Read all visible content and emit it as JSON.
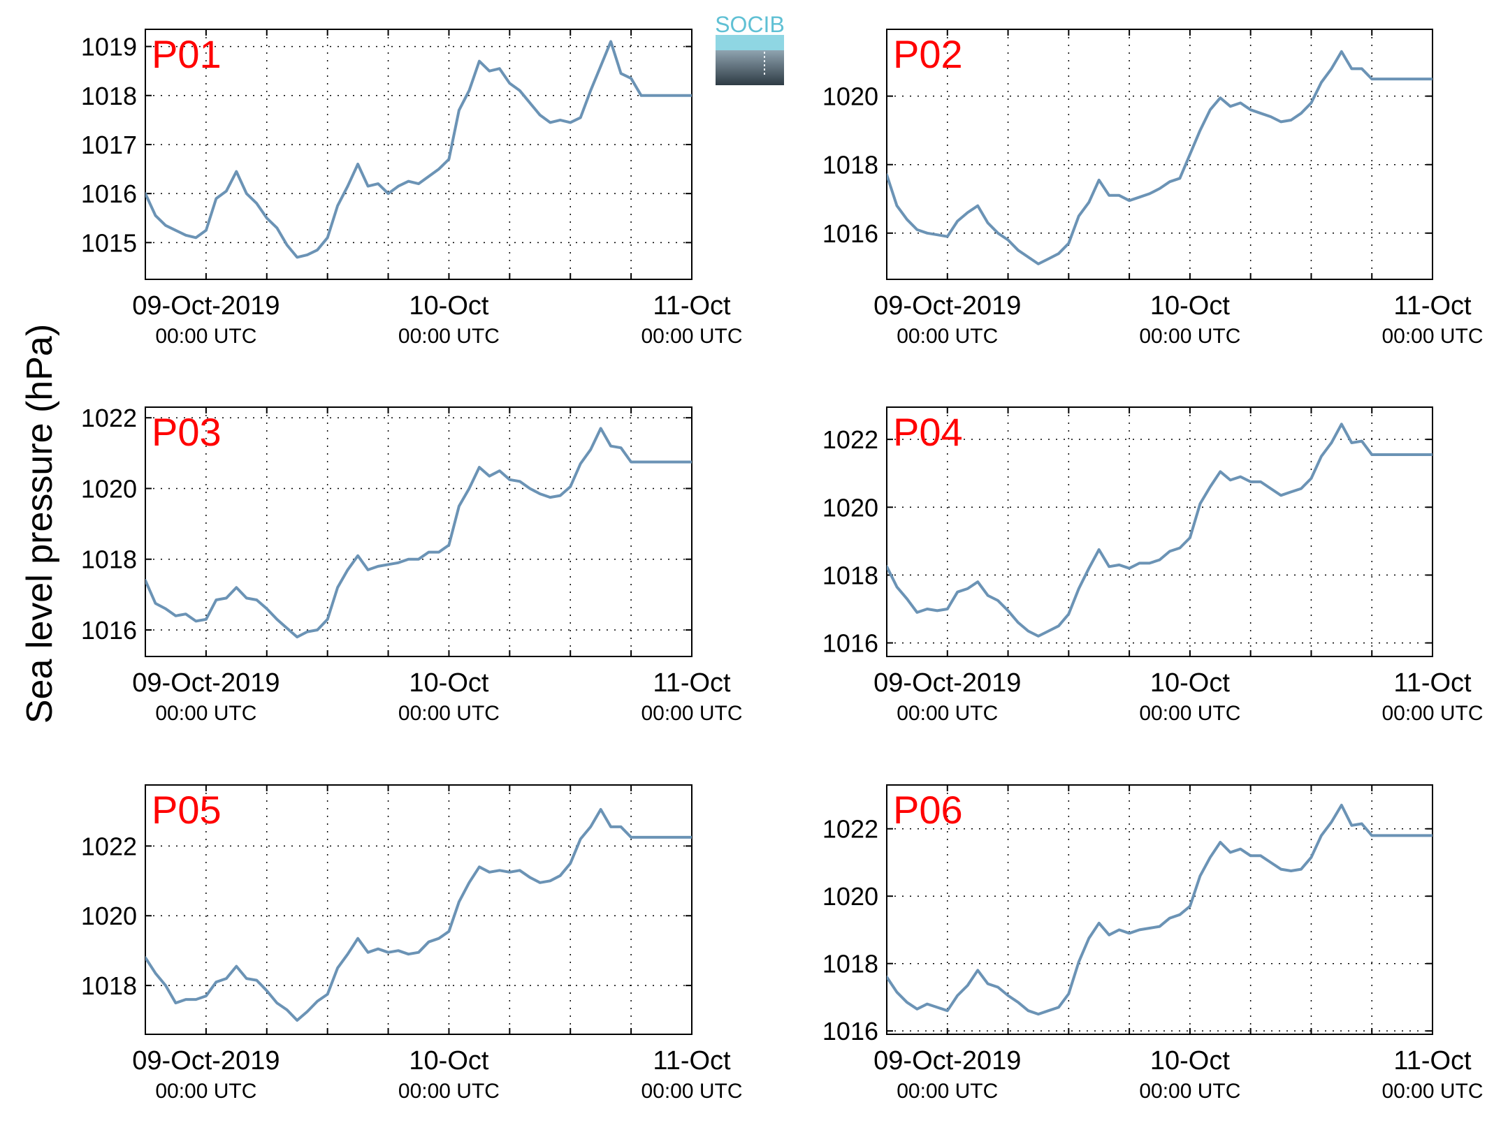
{
  "figure": {
    "ylabel": "Sea level pressure (hPa)",
    "logo_text": "SOCIB"
  },
  "colors": {
    "series": "#6b93b5",
    "panel_label": "#ff0000",
    "logo_top": "#5fc0d4",
    "logo_bottom": "#2e3b44"
  },
  "icons": {
    "logo": "socib-logo"
  },
  "x_ticks": [
    {
      "t": 0,
      "line1": "09-Oct-2019",
      "line2": "00:00 UTC"
    },
    {
      "t": 24,
      "line1": "10-Oct",
      "line2": "00:00 UTC"
    },
    {
      "t": 48,
      "line1": "11-Oct",
      "line2": "00:00 UTC"
    }
  ],
  "chart_data": [
    {
      "type": "line",
      "label": "P01",
      "xlim": [
        -6,
        48
      ],
      "ylim": [
        1014.25,
        1019.35
      ],
      "yticks": [
        1015,
        1016,
        1017,
        1018,
        1019
      ],
      "grid": true,
      "x": [
        -6,
        -5,
        -4,
        -3,
        -2,
        -1,
        0,
        1,
        2,
        3,
        4,
        5,
        6,
        7,
        8,
        9,
        10,
        11,
        12,
        13,
        14,
        15,
        16,
        17,
        18,
        19,
        20,
        21,
        22,
        23,
        24,
        25,
        26,
        27,
        28,
        29,
        30,
        31,
        32,
        33,
        34,
        35,
        36,
        37,
        38,
        39,
        40,
        41,
        42,
        43,
        44,
        45,
        46,
        47,
        48
      ],
      "y": [
        1016.0,
        1015.55,
        1015.35,
        1015.25,
        1015.15,
        1015.1,
        1015.25,
        1015.9,
        1016.05,
        1016.45,
        1016.0,
        1015.8,
        1015.5,
        1015.3,
        1014.95,
        1014.7,
        1014.75,
        1014.85,
        1015.1,
        1015.75,
        1016.15,
        1016.6,
        1016.15,
        1016.2,
        1016.0,
        1016.15,
        1016.25,
        1016.2,
        1016.35,
        1016.5,
        1016.7,
        1017.7,
        1018.1,
        1018.7,
        1018.5,
        1018.55,
        1018.25,
        1018.1,
        1017.85,
        1017.6,
        1017.45,
        1017.5,
        1017.45,
        1017.55,
        1018.1,
        1018.6,
        1019.1,
        1018.45,
        1018.35,
        1018.0,
        1018.0,
        1018.0,
        1018.0,
        1018.0,
        1018.0
      ]
    },
    {
      "type": "line",
      "label": "P02",
      "xlim": [
        -6,
        48
      ],
      "ylim": [
        1014.65,
        1021.95
      ],
      "yticks": [
        1016,
        1018,
        1020
      ],
      "grid": true,
      "x": [
        -6,
        -5,
        -4,
        -3,
        -2,
        -1,
        0,
        1,
        2,
        3,
        4,
        5,
        6,
        7,
        8,
        9,
        10,
        11,
        12,
        13,
        14,
        15,
        16,
        17,
        18,
        19,
        20,
        21,
        22,
        23,
        24,
        25,
        26,
        27,
        28,
        29,
        30,
        31,
        32,
        33,
        34,
        35,
        36,
        37,
        38,
        39,
        40,
        41,
        42,
        43,
        44,
        45,
        46,
        47,
        48
      ],
      "y": [
        1017.7,
        1016.8,
        1016.4,
        1016.1,
        1016.0,
        1015.95,
        1015.9,
        1016.35,
        1016.6,
        1016.8,
        1016.3,
        1016.0,
        1015.8,
        1015.5,
        1015.3,
        1015.1,
        1015.25,
        1015.4,
        1015.7,
        1016.5,
        1016.9,
        1017.55,
        1017.1,
        1017.1,
        1016.95,
        1017.05,
        1017.15,
        1017.3,
        1017.5,
        1017.6,
        1018.3,
        1019.0,
        1019.6,
        1019.95,
        1019.7,
        1019.8,
        1019.6,
        1019.5,
        1019.4,
        1019.25,
        1019.3,
        1019.5,
        1019.8,
        1020.4,
        1020.8,
        1021.3,
        1020.8,
        1020.8,
        1020.5,
        1020.5,
        1020.5,
        1020.5,
        1020.5,
        1020.5,
        1020.5
      ]
    },
    {
      "type": "line",
      "label": "P03",
      "xlim": [
        -6,
        48
      ],
      "ylim": [
        1015.25,
        1022.3
      ],
      "yticks": [
        1016,
        1018,
        1020,
        1022
      ],
      "grid": true,
      "x": [
        -6,
        -5,
        -4,
        -3,
        -2,
        -1,
        0,
        1,
        2,
        3,
        4,
        5,
        6,
        7,
        8,
        9,
        10,
        11,
        12,
        13,
        14,
        15,
        16,
        17,
        18,
        19,
        20,
        21,
        22,
        23,
        24,
        25,
        26,
        27,
        28,
        29,
        30,
        31,
        32,
        33,
        34,
        35,
        36,
        37,
        38,
        39,
        40,
        41,
        42,
        43,
        44,
        45,
        46,
        47,
        48
      ],
      "y": [
        1017.4,
        1016.75,
        1016.6,
        1016.4,
        1016.45,
        1016.25,
        1016.3,
        1016.85,
        1016.9,
        1017.2,
        1016.9,
        1016.85,
        1016.6,
        1016.3,
        1016.05,
        1015.8,
        1015.95,
        1016.0,
        1016.3,
        1017.2,
        1017.7,
        1018.1,
        1017.7,
        1017.8,
        1017.85,
        1017.9,
        1018.0,
        1018.0,
        1018.2,
        1018.2,
        1018.4,
        1019.5,
        1020.0,
        1020.6,
        1020.35,
        1020.5,
        1020.25,
        1020.2,
        1020.0,
        1019.85,
        1019.75,
        1019.8,
        1020.05,
        1020.7,
        1021.1,
        1021.7,
        1021.2,
        1021.15,
        1020.75,
        1020.75,
        1020.75,
        1020.75,
        1020.75,
        1020.75,
        1020.75
      ]
    },
    {
      "type": "line",
      "label": "P04",
      "xlim": [
        -6,
        48
      ],
      "ylim": [
        1015.6,
        1022.95
      ],
      "yticks": [
        1016,
        1018,
        1020,
        1022
      ],
      "grid": true,
      "x": [
        -6,
        -5,
        -4,
        -3,
        -2,
        -1,
        0,
        1,
        2,
        3,
        4,
        5,
        6,
        7,
        8,
        9,
        10,
        11,
        12,
        13,
        14,
        15,
        16,
        17,
        18,
        19,
        20,
        21,
        22,
        23,
        24,
        25,
        26,
        27,
        28,
        29,
        30,
        31,
        32,
        33,
        34,
        35,
        36,
        37,
        38,
        39,
        40,
        41,
        42,
        43,
        44,
        45,
        46,
        47,
        48
      ],
      "y": [
        1018.25,
        1017.65,
        1017.3,
        1016.9,
        1017.0,
        1016.95,
        1017.0,
        1017.5,
        1017.6,
        1017.8,
        1017.4,
        1017.25,
        1016.95,
        1016.6,
        1016.35,
        1016.2,
        1016.35,
        1016.5,
        1016.85,
        1017.6,
        1018.2,
        1018.75,
        1018.25,
        1018.3,
        1018.2,
        1018.35,
        1018.35,
        1018.45,
        1018.7,
        1018.8,
        1019.1,
        1020.1,
        1020.6,
        1021.05,
        1020.8,
        1020.9,
        1020.75,
        1020.75,
        1020.55,
        1020.35,
        1020.45,
        1020.55,
        1020.85,
        1021.5,
        1021.9,
        1022.45,
        1021.9,
        1021.95,
        1021.55,
        1021.55,
        1021.55,
        1021.55,
        1021.55,
        1021.55,
        1021.55
      ]
    },
    {
      "type": "line",
      "label": "P05",
      "xlim": [
        -6,
        48
      ],
      "ylim": [
        1016.6,
        1023.75
      ],
      "yticks": [
        1018,
        1020,
        1022
      ],
      "grid": true,
      "x": [
        -6,
        -5,
        -4,
        -3,
        -2,
        -1,
        0,
        1,
        2,
        3,
        4,
        5,
        6,
        7,
        8,
        9,
        10,
        11,
        12,
        13,
        14,
        15,
        16,
        17,
        18,
        19,
        20,
        21,
        22,
        23,
        24,
        25,
        26,
        27,
        28,
        29,
        30,
        31,
        32,
        33,
        34,
        35,
        36,
        37,
        38,
        39,
        40,
        41,
        42,
        43,
        44,
        45,
        46,
        47,
        48
      ],
      "y": [
        1018.8,
        1018.35,
        1018.0,
        1017.5,
        1017.6,
        1017.6,
        1017.7,
        1018.1,
        1018.2,
        1018.55,
        1018.2,
        1018.15,
        1017.85,
        1017.5,
        1017.3,
        1017.0,
        1017.25,
        1017.55,
        1017.75,
        1018.5,
        1018.9,
        1019.35,
        1018.95,
        1019.05,
        1018.95,
        1019.0,
        1018.9,
        1018.95,
        1019.25,
        1019.35,
        1019.55,
        1020.4,
        1020.95,
        1021.4,
        1021.25,
        1021.3,
        1021.25,
        1021.3,
        1021.1,
        1020.95,
        1021.0,
        1021.15,
        1021.5,
        1022.2,
        1022.55,
        1023.05,
        1022.55,
        1022.55,
        1022.25,
        1022.25,
        1022.25,
        1022.25,
        1022.25,
        1022.25,
        1022.25
      ]
    },
    {
      "type": "line",
      "label": "P06",
      "xlim": [
        -6,
        48
      ],
      "ylim": [
        1015.9,
        1023.3
      ],
      "yticks": [
        1016,
        1018,
        1020,
        1022
      ],
      "grid": true,
      "x": [
        -6,
        -5,
        -4,
        -3,
        -2,
        -1,
        0,
        1,
        2,
        3,
        4,
        5,
        6,
        7,
        8,
        9,
        10,
        11,
        12,
        13,
        14,
        15,
        16,
        17,
        18,
        19,
        20,
        21,
        22,
        23,
        24,
        25,
        26,
        27,
        28,
        29,
        30,
        31,
        32,
        33,
        34,
        35,
        36,
        37,
        38,
        39,
        40,
        41,
        42,
        43,
        44,
        45,
        46,
        47,
        48
      ],
      "y": [
        1017.6,
        1017.15,
        1016.85,
        1016.65,
        1016.8,
        1016.7,
        1016.6,
        1017.05,
        1017.35,
        1017.8,
        1017.4,
        1017.3,
        1017.05,
        1016.85,
        1016.6,
        1016.5,
        1016.6,
        1016.7,
        1017.1,
        1018.05,
        1018.75,
        1019.2,
        1018.85,
        1019.0,
        1018.9,
        1019.0,
        1019.05,
        1019.1,
        1019.35,
        1019.45,
        1019.7,
        1020.6,
        1021.15,
        1021.6,
        1021.3,
        1021.4,
        1021.2,
        1021.2,
        1021.0,
        1020.8,
        1020.75,
        1020.8,
        1021.15,
        1021.8,
        1022.2,
        1022.7,
        1022.1,
        1022.15,
        1021.8,
        1021.8,
        1021.8,
        1021.8,
        1021.8,
        1021.8,
        1021.8
      ]
    }
  ]
}
